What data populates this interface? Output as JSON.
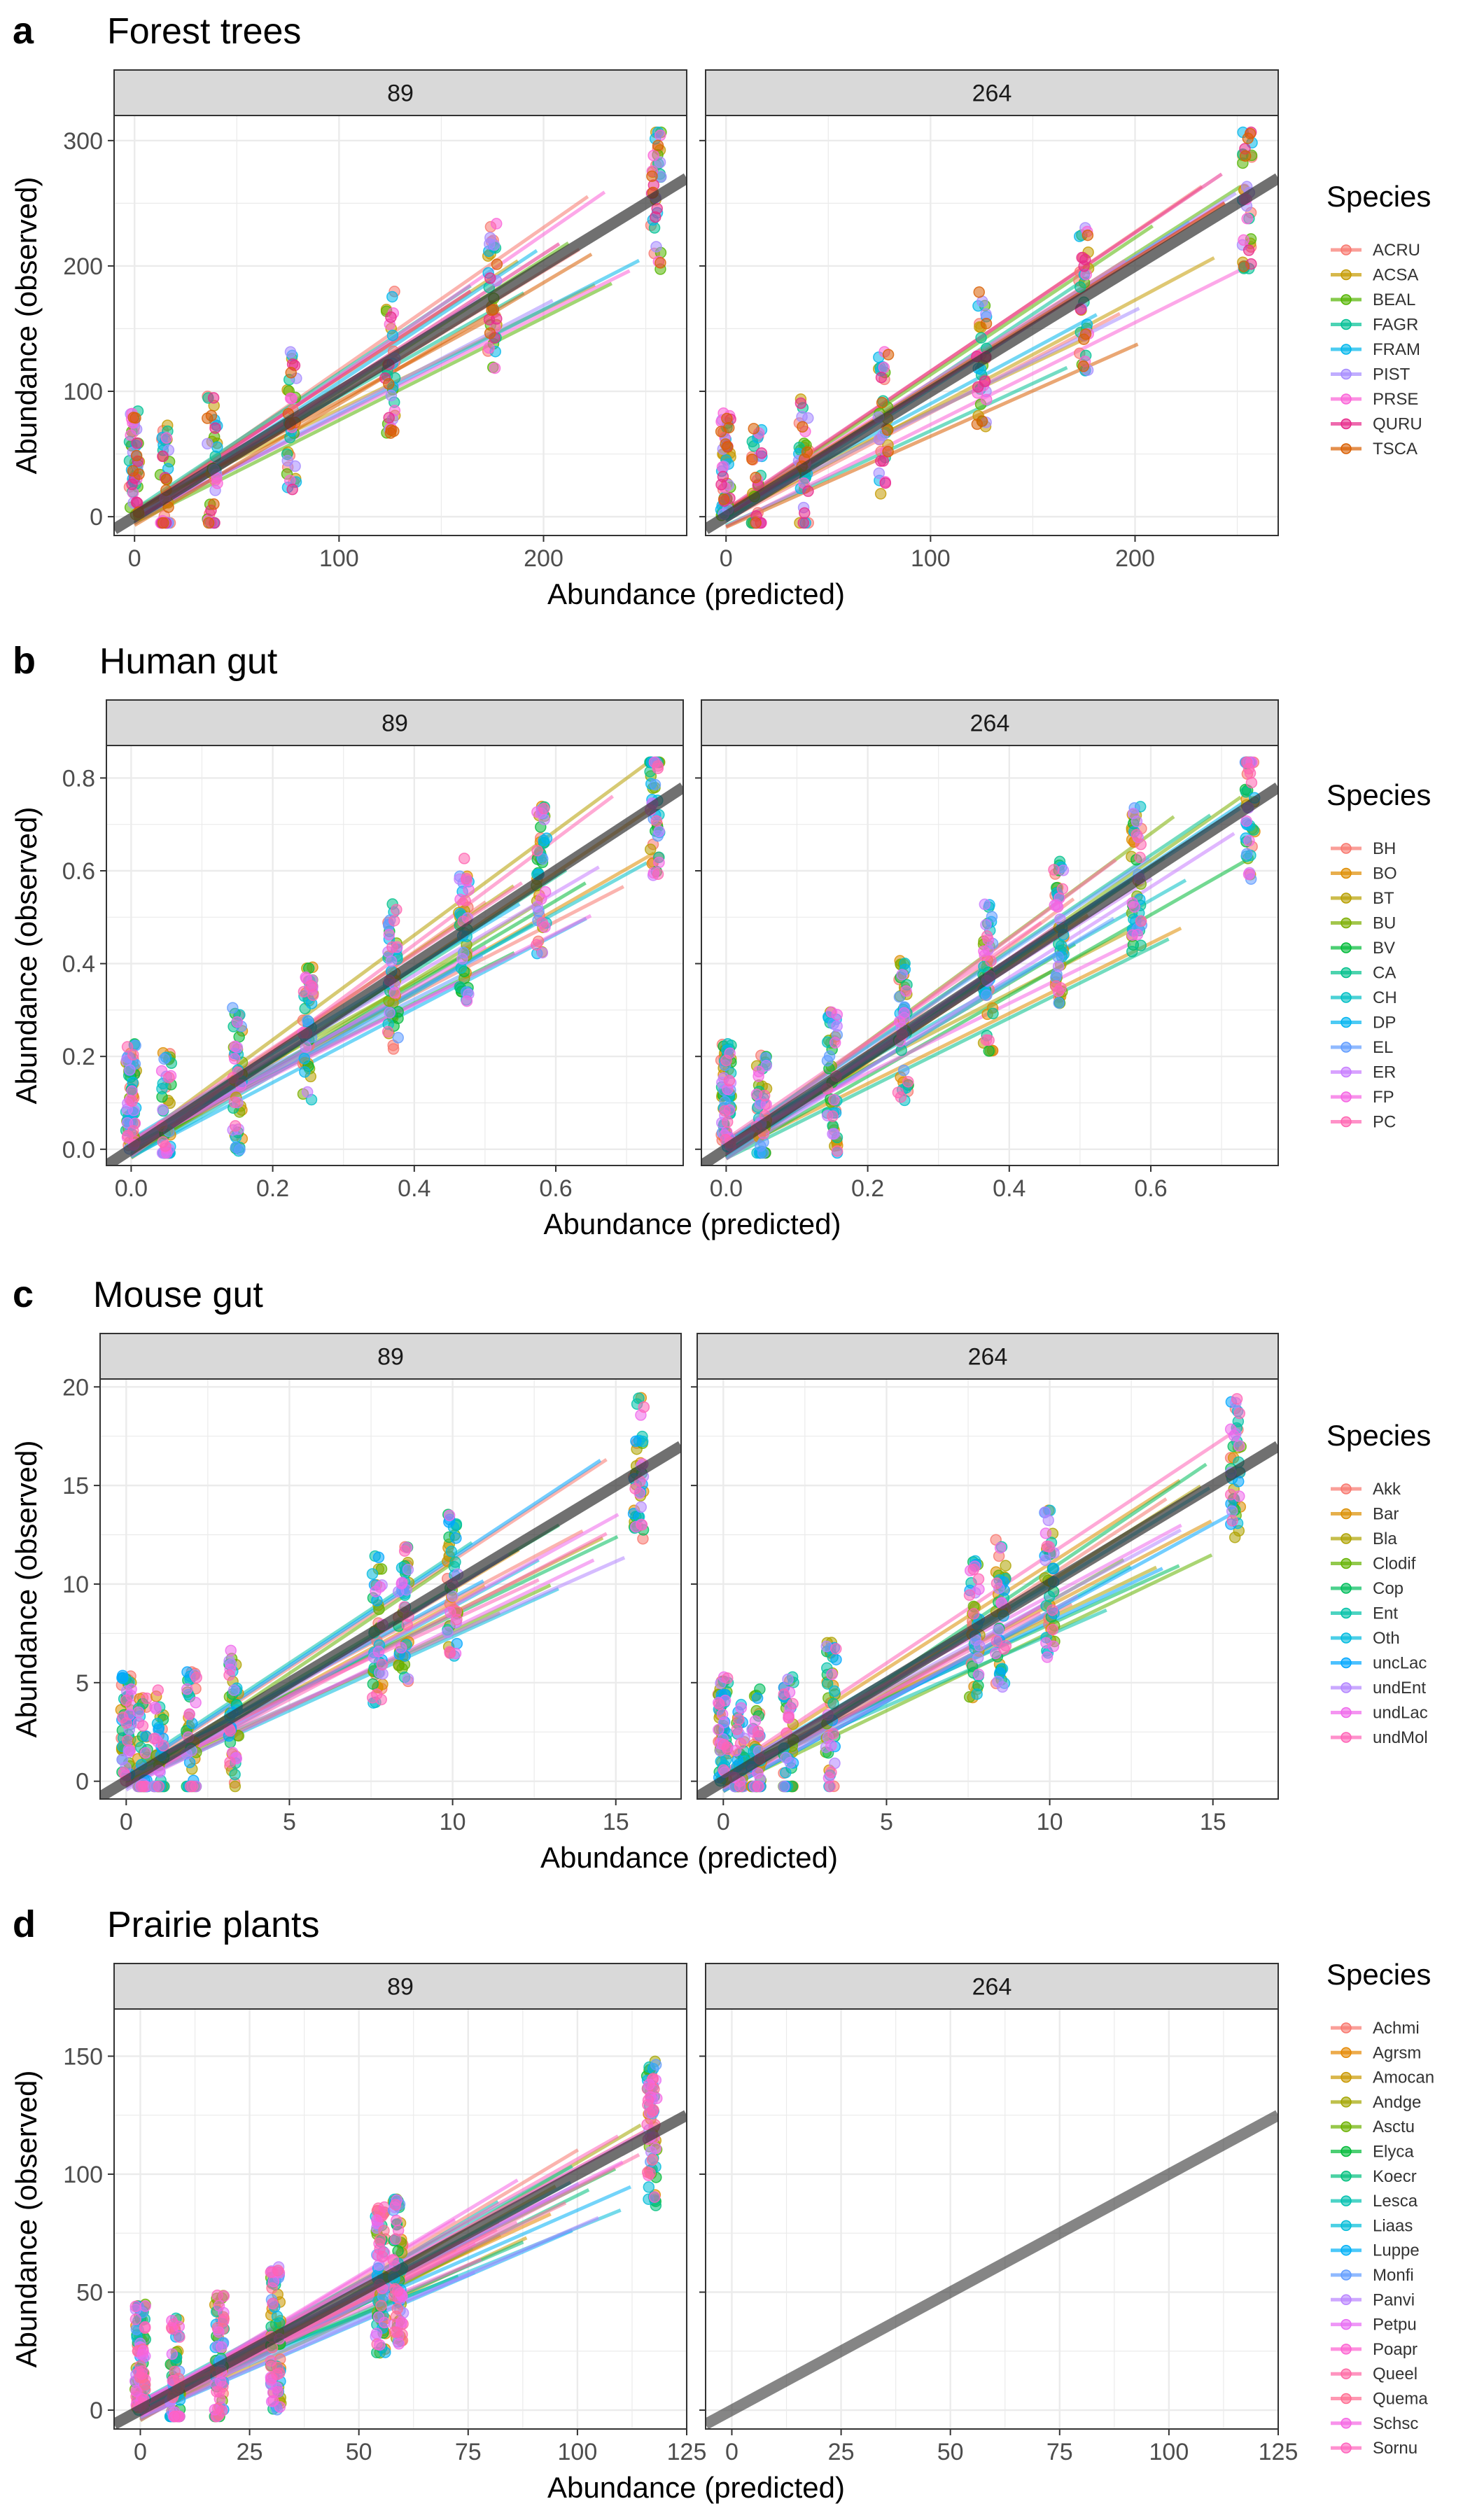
{
  "chart_data": [
    {
      "type": "scatter",
      "panel": "a",
      "title": "Forest trees",
      "facets": [
        "89",
        "264"
      ],
      "xlabel": "Abundance (predicted)",
      "ylabel": "Abundance (observed)",
      "xlim": [
        -10,
        270
      ],
      "ylim": [
        -15,
        320
      ],
      "xticks": [
        0,
        100,
        200
      ],
      "yticks": [
        0,
        100,
        200,
        300
      ],
      "x_levels": [
        0,
        15,
        38,
        77,
        125,
        175,
        255
      ],
      "legend_title": "Species",
      "series": [
        {
          "name": "ACRU",
          "color": "#F8766D"
        },
        {
          "name": "ACSA",
          "color": "#C49A00"
        },
        {
          "name": "BEAL",
          "color": "#53B400"
        },
        {
          "name": "FAGR",
          "color": "#00C094"
        },
        {
          "name": "FRAM",
          "color": "#00B6EB"
        },
        {
          "name": "PIST",
          "color": "#A58AFF"
        },
        {
          "name": "PRSE",
          "color": "#FB61D7"
        },
        {
          "name": "QURU",
          "color": "#E7298A"
        },
        {
          "name": "TSCA",
          "color": "#D95F02"
        }
      ],
      "reference_line": {
        "slope": 1,
        "intercept": 0
      }
    },
    {
      "type": "scatter",
      "panel": "b",
      "title": "Human gut",
      "facets": [
        "89",
        "264"
      ],
      "xlabel": "Abundance (predicted)",
      "ylabel": "Abundance (observed)",
      "xlim": [
        -0.035,
        0.78
      ],
      "ylim": [
        -0.035,
        0.87
      ],
      "xticks": [
        0.0,
        0.2,
        0.4,
        0.6
      ],
      "yticks": [
        0.0,
        0.2,
        0.4,
        0.6,
        0.8
      ],
      "x_levels": [
        0.0,
        0.05,
        0.15,
        0.25,
        0.37,
        0.47,
        0.58,
        0.74
      ],
      "legend_title": "Species",
      "series": [
        {
          "name": "BH",
          "color": "#F8766D"
        },
        {
          "name": "BO",
          "color": "#DE8C00"
        },
        {
          "name": "BT",
          "color": "#B79F00"
        },
        {
          "name": "BU",
          "color": "#7CAE00"
        },
        {
          "name": "BV",
          "color": "#00BA38"
        },
        {
          "name": "CA",
          "color": "#00C08B"
        },
        {
          "name": "CH",
          "color": "#00BFC4"
        },
        {
          "name": "DP",
          "color": "#00B4F0"
        },
        {
          "name": "EL",
          "color": "#619CFF"
        },
        {
          "name": "ER",
          "color": "#C77CFF"
        },
        {
          "name": "FP",
          "color": "#F564E3"
        },
        {
          "name": "PC",
          "color": "#FF64B0"
        }
      ],
      "reference_line": {
        "slope": 1,
        "intercept": 0
      }
    },
    {
      "type": "scatter",
      "panel": "c",
      "title": "Mouse gut",
      "facets": [
        "89",
        "264"
      ],
      "xlabel": "Abundance (predicted)",
      "ylabel": "Abundance (observed)",
      "xlim": [
        -0.8,
        17
      ],
      "ylim": [
        -0.9,
        20.4
      ],
      "xticks": [
        0,
        5,
        10,
        15
      ],
      "yticks": [
        0,
        5,
        10,
        15,
        20
      ],
      "x_levels": [
        0,
        0.5,
        1,
        2,
        3.3,
        7.7,
        8.5,
        10,
        15.7
      ],
      "legend_title": "Species",
      "series": [
        {
          "name": "Akk",
          "color": "#F8766D"
        },
        {
          "name": "Bar",
          "color": "#DB8E00"
        },
        {
          "name": "Bla",
          "color": "#AEA200"
        },
        {
          "name": "Clodif",
          "color": "#64B200"
        },
        {
          "name": "Cop",
          "color": "#00BD5C"
        },
        {
          "name": "Ent",
          "color": "#00C1A7"
        },
        {
          "name": "Oth",
          "color": "#00BADE"
        },
        {
          "name": "uncLac",
          "color": "#00A6FF"
        },
        {
          "name": "undEnt",
          "color": "#B385FF"
        },
        {
          "name": "undLac",
          "color": "#EF67EB"
        },
        {
          "name": "undMol",
          "color": "#FF63B6"
        }
      ],
      "reference_line": {
        "slope": 1,
        "intercept": 0
      }
    },
    {
      "type": "scatter",
      "panel": "d",
      "title": "Prairie plants",
      "facets": [
        "89",
        "264"
      ],
      "xlabel": "Abundance (predicted)",
      "ylabel": "Abundance (observed)",
      "xlim": [
        -6,
        125
      ],
      "ylim": [
        -8,
        170
      ],
      "xticks": [
        0,
        25,
        50,
        75,
        100,
        125
      ],
      "yticks": [
        0,
        50,
        100,
        150
      ],
      "x_levels": [
        0,
        8,
        18,
        31,
        55,
        59,
        117
      ],
      "legend_title": "Species",
      "series": [
        {
          "name": "Achmi",
          "color": "#F8766D"
        },
        {
          "name": "Agrsm",
          "color": "#E58700"
        },
        {
          "name": "Amocan",
          "color": "#C99800"
        },
        {
          "name": "Andge",
          "color": "#A3A500"
        },
        {
          "name": "Asctu",
          "color": "#6BB100"
        },
        {
          "name": "Elyca",
          "color": "#00BA38"
        },
        {
          "name": "Koecr",
          "color": "#00BF7D"
        },
        {
          "name": "Lesca",
          "color": "#00C0AF"
        },
        {
          "name": "Liaas",
          "color": "#00BCD8"
        },
        {
          "name": "Luppe",
          "color": "#00B0F6"
        },
        {
          "name": "Monfi",
          "color": "#619CFF"
        },
        {
          "name": "Panvi",
          "color": "#B983FF"
        },
        {
          "name": "Petpu",
          "color": "#E76BF3"
        },
        {
          "name": "Poapr",
          "color": "#FD61D1"
        },
        {
          "name": "Queel",
          "color": "#FF67A4"
        },
        {
          "name": "Quema",
          "color": "#FF6C91"
        },
        {
          "name": "Schsc",
          "color": "#F564E3"
        },
        {
          "name": "Sornu",
          "color": "#FF62BC"
        }
      ],
      "reference_line": {
        "slope": 1,
        "intercept": 0
      },
      "empty_facet": "264"
    }
  ]
}
